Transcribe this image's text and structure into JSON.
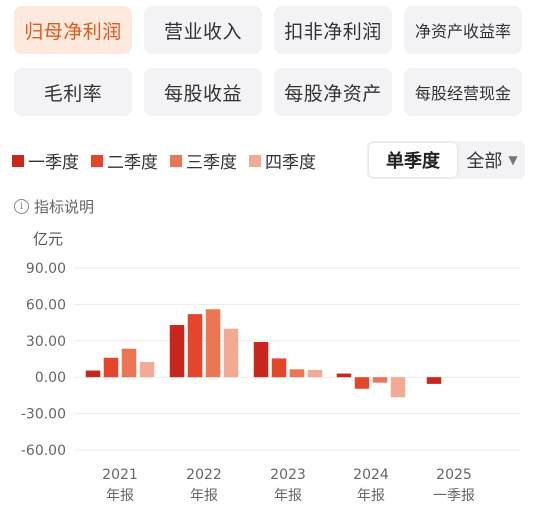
{
  "metric_tabs": [
    [
      {
        "label": "归母净利润",
        "active": true,
        "small": false
      },
      {
        "label": "营业收入",
        "active": false,
        "small": false
      },
      {
        "label": "扣非净利润",
        "active": false,
        "small": false
      },
      {
        "label": "净资产收益率",
        "active": false,
        "small": true
      }
    ],
    [
      {
        "label": "毛利率",
        "active": false,
        "small": false
      },
      {
        "label": "每股收益",
        "active": false,
        "small": false
      },
      {
        "label": "每股净资产",
        "active": false,
        "small": false
      },
      {
        "label": "每股经营现金",
        "active": false,
        "small": true
      }
    ]
  ],
  "legend": {
    "q1": "一季度",
    "q2": "二季度",
    "q3": "三季度",
    "q4": "四季度"
  },
  "period_toggle": {
    "single_quarter": "单季度",
    "all": "全部"
  },
  "explain_label": "指标说明",
  "unit_label": "亿元",
  "colors": {
    "q1": "#c9261d",
    "q2": "#e4452b",
    "q3": "#ec7654",
    "q4": "#f3aa94",
    "accent": "#e05a1e"
  },
  "chart_data": {
    "type": "bar",
    "categories": [
      [
        "2021",
        "年报"
      ],
      [
        "2022",
        "年报"
      ],
      [
        "2023",
        "年报"
      ],
      [
        "2024",
        "年报"
      ],
      [
        "2025",
        "一季报"
      ]
    ],
    "ylim": [
      -60,
      90
    ],
    "yticks": [
      "90.00",
      "60.00",
      "30.00",
      "0.00",
      "-30.00",
      "-60.00"
    ],
    "series": [
      {
        "name": "一季度",
        "values": [
          5.5,
          43,
          29,
          3,
          -5.5
        ]
      },
      {
        "name": "二季度",
        "values": [
          16,
          52,
          15.5,
          -9.5,
          null
        ]
      },
      {
        "name": "三季度",
        "values": [
          23.5,
          56,
          6.5,
          -4.5,
          null
        ]
      },
      {
        "name": "四季度",
        "values": [
          12.5,
          40,
          6,
          -16.5,
          null
        ]
      }
    ]
  }
}
